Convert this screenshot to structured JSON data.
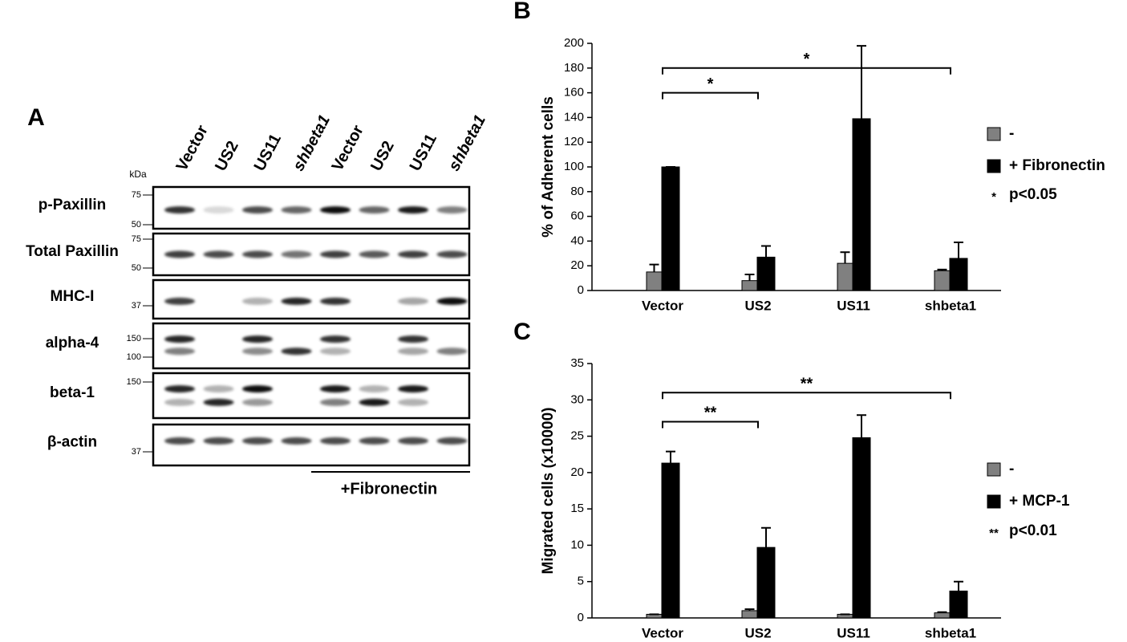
{
  "panel_a": {
    "label": "A",
    "kda_label": "kDa",
    "lanes": [
      "Vector",
      "US2",
      "US11",
      "shbeta1",
      "Vector",
      "US2",
      "US11",
      "shbeta1"
    ],
    "rows": [
      {
        "name": "p-Paxillin",
        "markers": [
          "75",
          "50"
        ]
      },
      {
        "name": "Total Paxillin",
        "markers": [
          "75",
          "50"
        ]
      },
      {
        "name": "MHC-I",
        "markers": [
          "37"
        ]
      },
      {
        "name": "alpha-4",
        "markers": [
          "150",
          "100"
        ]
      },
      {
        "name": "beta-1",
        "markers": [
          "150"
        ]
      },
      {
        "name": "β-actin",
        "markers": [
          "37"
        ]
      }
    ],
    "treatment": "+Fibronectin"
  },
  "chart_data": [
    {
      "type": "bar",
      "panel": "B",
      "ylabel": "% of Adherent cells",
      "categories": [
        "Vector",
        "US2",
        "US11",
        "shbeta1"
      ],
      "series": [
        {
          "name": "-",
          "color": "#808080",
          "values": [
            15,
            8,
            22,
            16
          ],
          "errors": [
            6,
            5,
            9,
            1
          ]
        },
        {
          "name": "+ Fibronectin",
          "color": "#000000",
          "values": [
            100,
            27,
            139,
            26
          ],
          "errors": [
            0,
            9,
            59,
            13
          ]
        }
      ],
      "ylim": [
        0,
        200
      ],
      "yticks": [
        0,
        20,
        40,
        60,
        80,
        100,
        120,
        140,
        160,
        180,
        200
      ],
      "brackets": [
        {
          "label": "*",
          "categories": [
            "Vector",
            "US2"
          ],
          "y": 160
        },
        {
          "label": "*",
          "categories": [
            "Vector",
            "shbeta1"
          ],
          "y": 180
        }
      ],
      "significance": {
        "symbol": "*",
        "text": "p<0.05"
      }
    },
    {
      "type": "bar",
      "panel": "C",
      "ylabel": "Migrated cells (x10000)",
      "categories": [
        "Vector",
        "US2",
        "US11",
        "shbeta1"
      ],
      "series": [
        {
          "name": "-",
          "color": "#808080",
          "values": [
            0.5,
            1.0,
            0.5,
            0.7
          ],
          "errors": [
            0,
            0.2,
            0,
            0.1
          ]
        },
        {
          "name": "+ MCP-1",
          "color": "#000000",
          "values": [
            21.3,
            9.7,
            24.8,
            3.7
          ],
          "errors": [
            1.6,
            2.7,
            3.1,
            1.3
          ]
        }
      ],
      "ylim": [
        0,
        35
      ],
      "yticks": [
        0,
        5,
        10,
        15,
        20,
        25,
        30,
        35
      ],
      "brackets": [
        {
          "label": "**",
          "categories": [
            "Vector",
            "US2"
          ],
          "y": 27
        },
        {
          "label": "**",
          "categories": [
            "Vector",
            "shbeta1"
          ],
          "y": 31
        }
      ],
      "significance": {
        "symbol": "**",
        "text": "p<0.01"
      }
    }
  ]
}
